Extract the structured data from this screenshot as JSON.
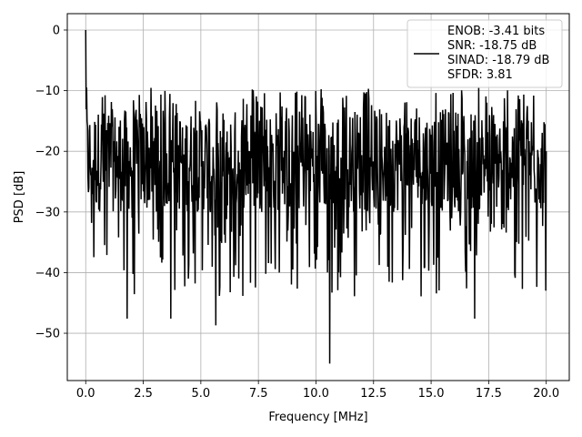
{
  "chart_data": {
    "type": "line",
    "title": "",
    "xlabel": "Frequency [MHz]",
    "ylabel": "PSD [dB]",
    "xlim": [
      -0.8,
      21.0
    ],
    "ylim": [
      -57.8,
      2.7
    ],
    "x_ticks": [
      0.0,
      2.5,
      5.0,
      7.5,
      10.0,
      12.5,
      15.0,
      17.5,
      20.0
    ],
    "x_tick_labels": [
      "0.0",
      "2.5",
      "5.0",
      "7.5",
      "10.0",
      "12.5",
      "15.0",
      "17.5",
      "20.0"
    ],
    "y_ticks": [
      0,
      -10,
      -20,
      -30,
      -40,
      -50
    ],
    "y_tick_labels": [
      "0",
      "−10",
      "−20",
      "−30",
      "−40",
      "−50"
    ],
    "grid": true,
    "legend_position": "top-right",
    "series": [
      {
        "name": "ENOB: -3.41 bits\nSNR: -18.75 dB\nSINAD: -18.79 dB\nSFDR: 3.81",
        "color": "#000000",
        "x_range": [
          0.0,
          20.0
        ],
        "points": 1024,
        "typical_band_db": [
          -30,
          -13
        ],
        "upper_envelope_db": -9.5,
        "peaks": [
          {
            "x": 0.0,
            "y": 0.0
          },
          {
            "x": 0.03,
            "y": -9.5
          },
          {
            "x": 10.6,
            "y": -55.0
          },
          {
            "x": 5.65,
            "y": -48.7
          },
          {
            "x": 1.8,
            "y": -47.6
          },
          {
            "x": 3.7,
            "y": -47.6
          },
          {
            "x": 16.9,
            "y": -47.6
          }
        ]
      }
    ]
  }
}
